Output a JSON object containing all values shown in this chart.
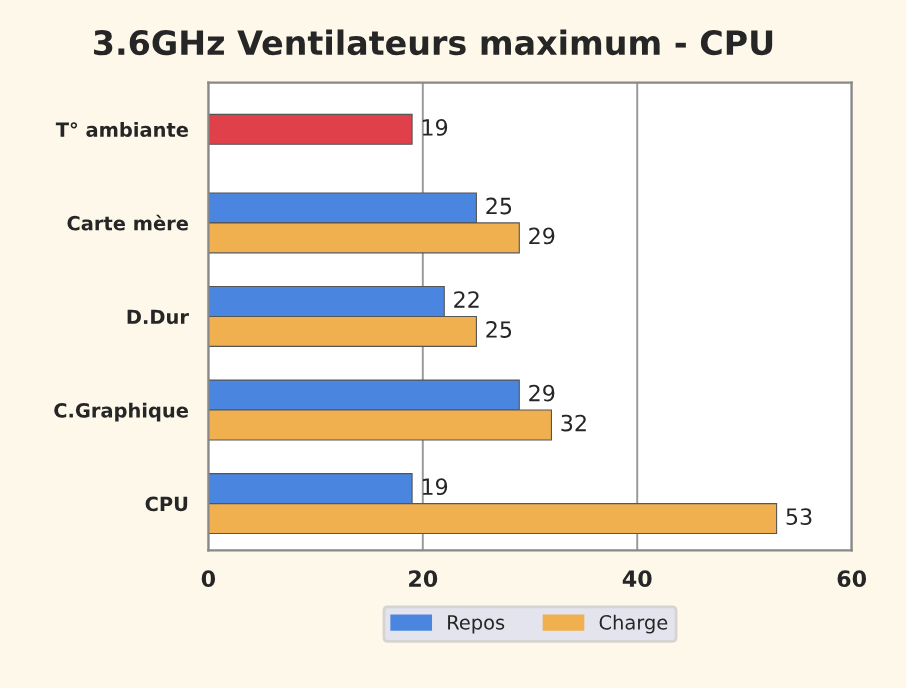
{
  "chart_data": {
    "type": "bar",
    "orientation": "horizontal",
    "title": "3.6GHz Ventilateurs maximum - CPU",
    "categories": [
      "T° ambiante",
      "Carte mère",
      "D.Dur",
      "C.Graphique",
      "CPU"
    ],
    "series": [
      {
        "name": "Repos",
        "color": "#4a86e0",
        "colors": [
          "#e0404a",
          "#4a86e0",
          "#4a86e0",
          "#4a86e0",
          "#4a86e0"
        ],
        "values": [
          19,
          25,
          22,
          29,
          19
        ]
      },
      {
        "name": "Charge",
        "color": "#f0b050",
        "values": [
          null,
          29,
          25,
          32,
          53
        ]
      }
    ],
    "xlim": [
      0,
      60
    ],
    "xticks": [
      0,
      20,
      40,
      60
    ],
    "grid": "x",
    "data_labels": true,
    "legend": "bottom"
  }
}
